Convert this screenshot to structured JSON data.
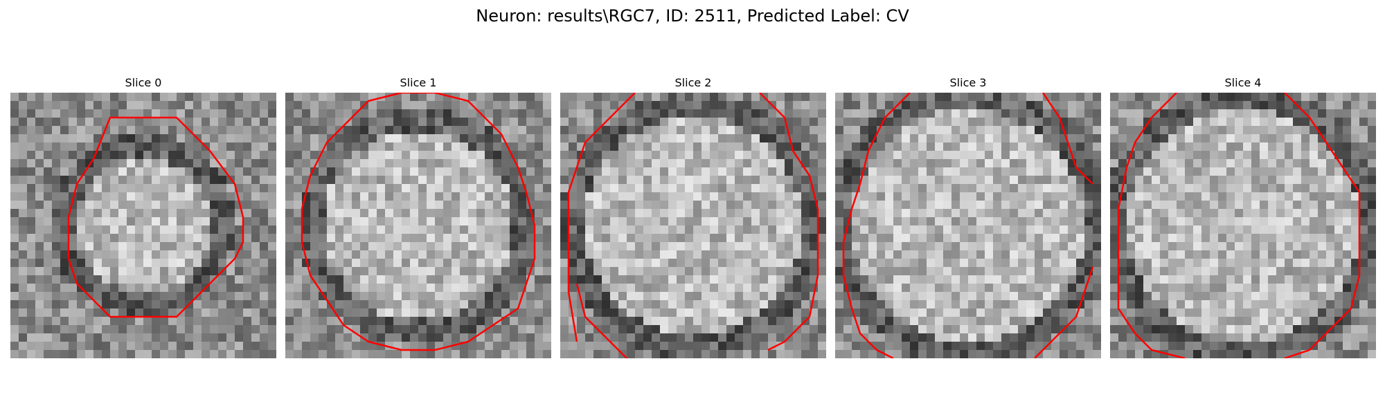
{
  "figure": {
    "title": "Neuron: results\\RGC7, ID: 2511, Predicted Label: CV",
    "contour_color": "#ff0000"
  },
  "slices": [
    {
      "title": "Slice 0"
    },
    {
      "title": "Slice 1"
    },
    {
      "title": "Slice 2"
    },
    {
      "title": "Slice 3"
    },
    {
      "title": "Slice 4"
    }
  ]
}
